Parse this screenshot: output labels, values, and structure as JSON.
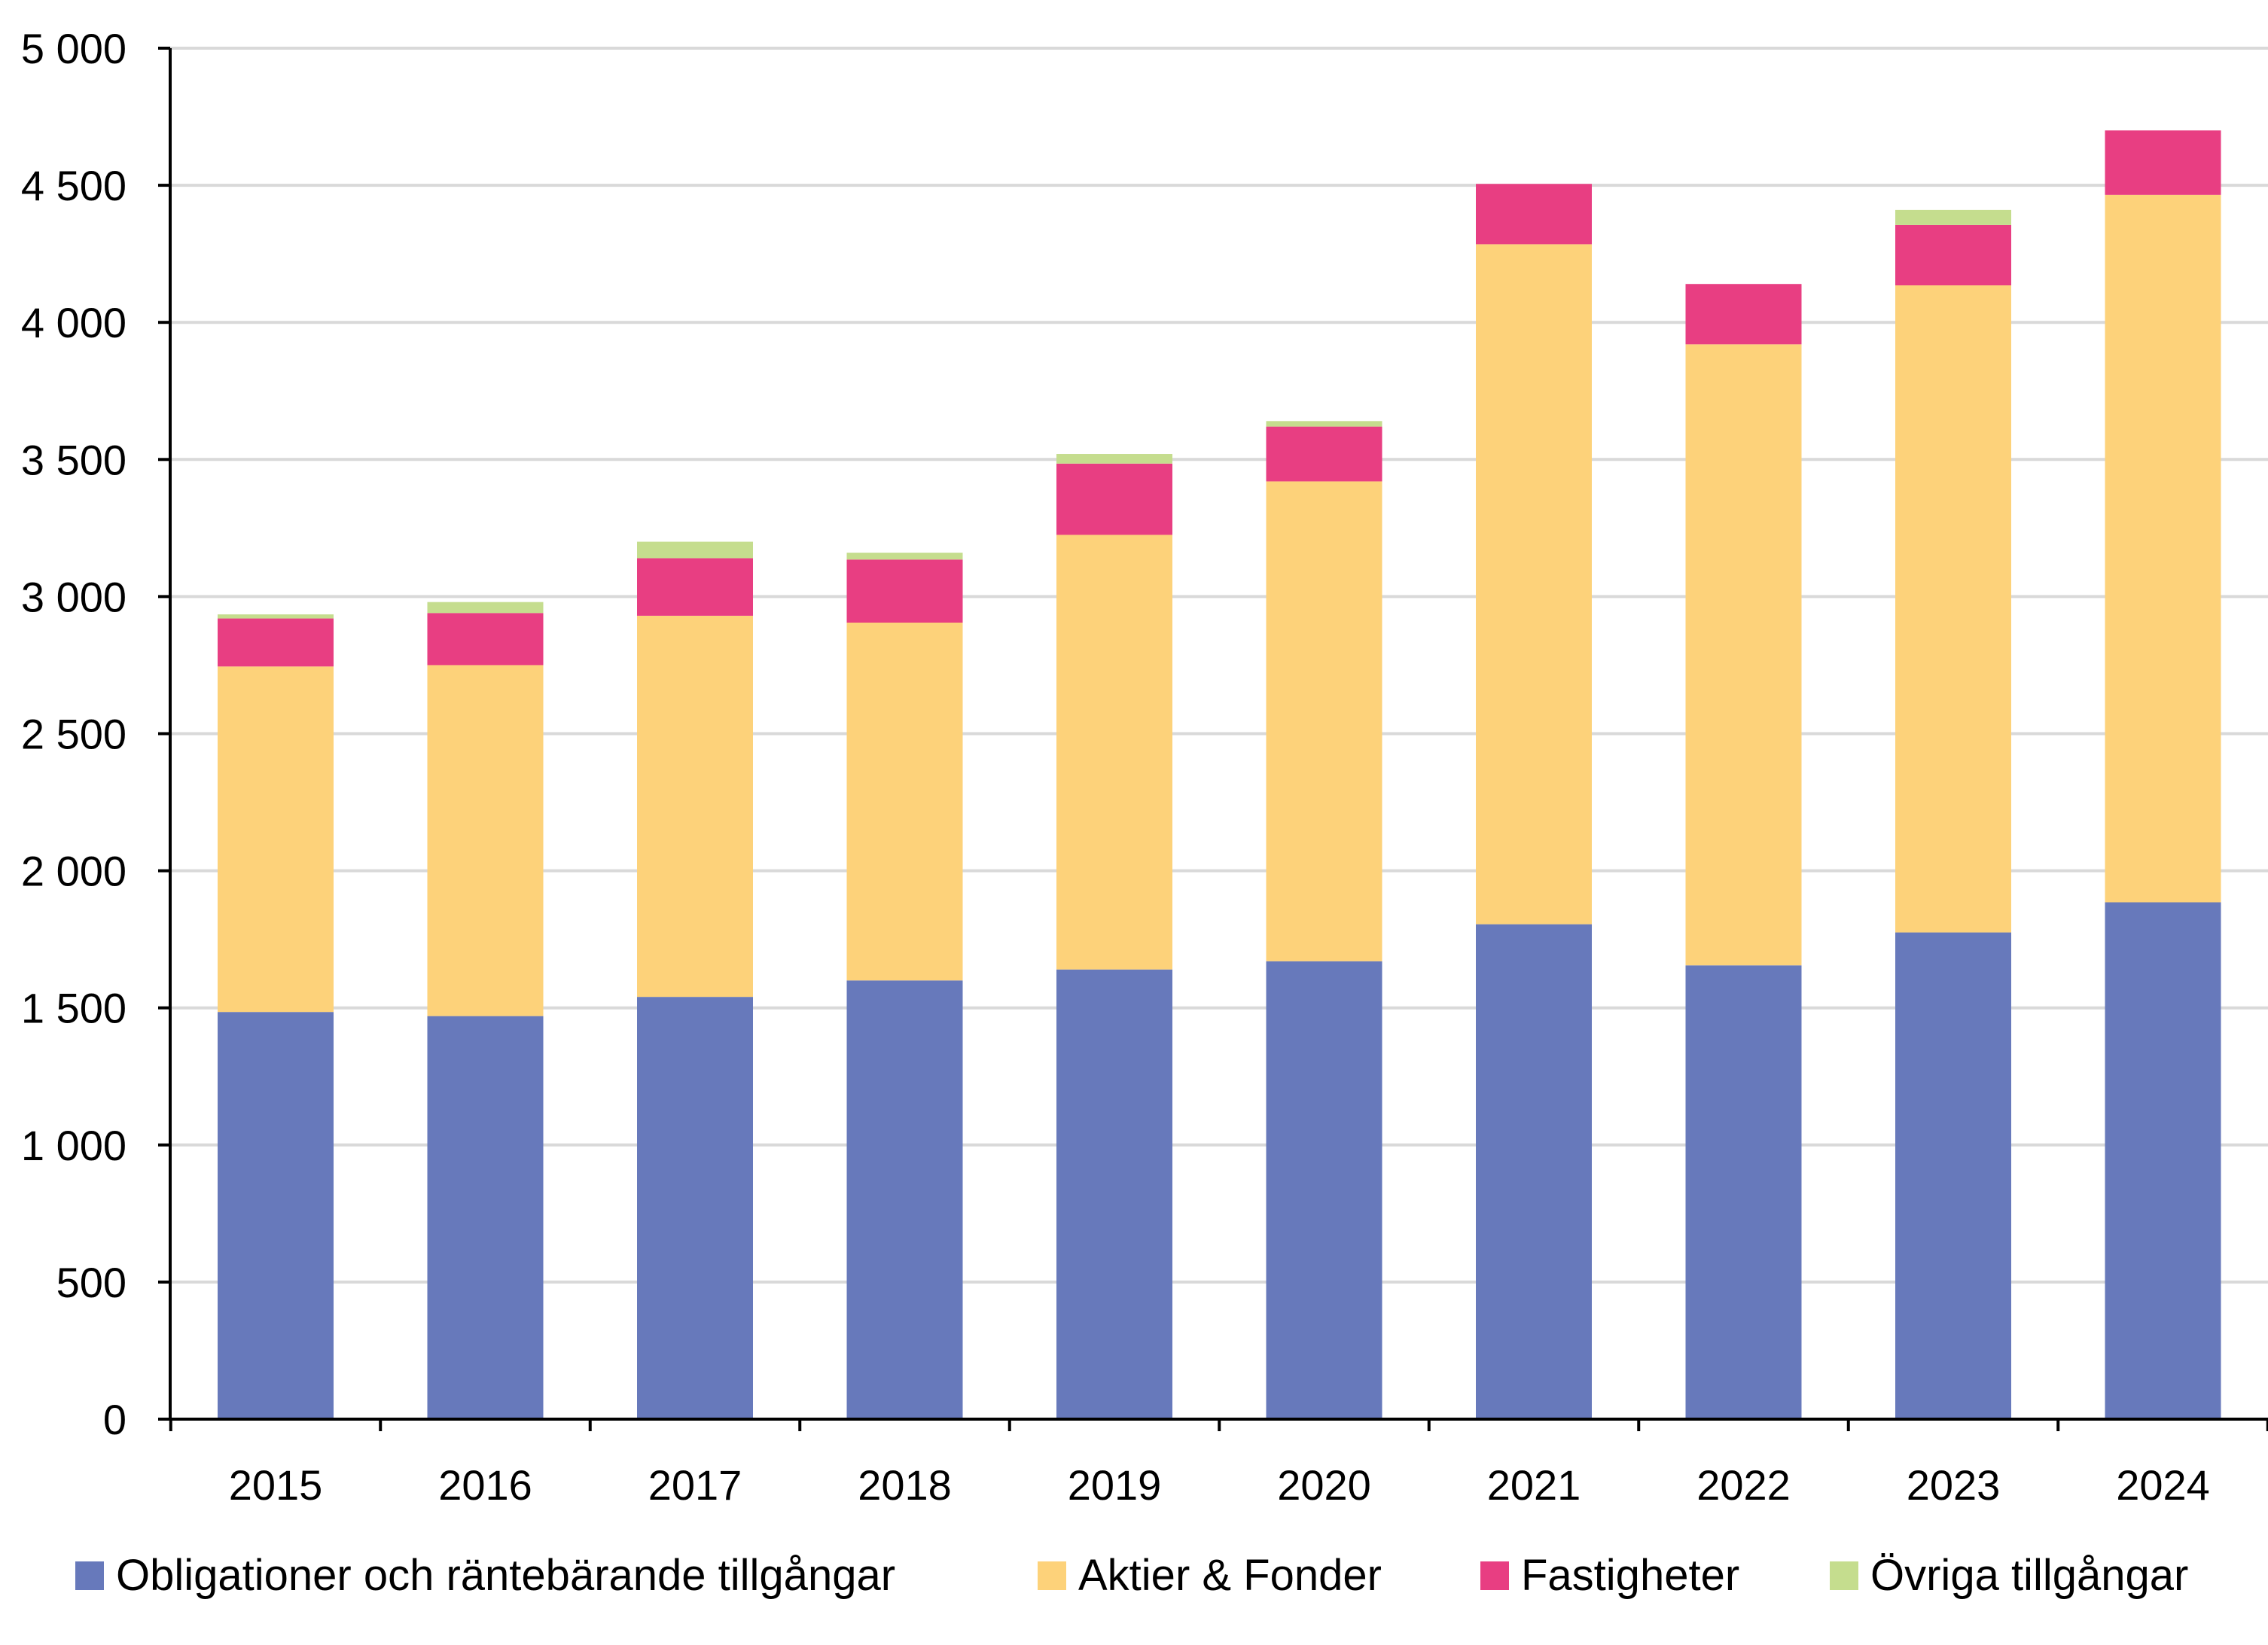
{
  "chart_data": {
    "type": "bar",
    "stacked": true,
    "title": "",
    "xlabel": "",
    "ylabel": "",
    "ylim": [
      0,
      5000
    ],
    "yticks": [
      0,
      500,
      1000,
      1500,
      2000,
      2500,
      3000,
      3500,
      4000,
      4500,
      5000
    ],
    "ytick_labels": [
      "0",
      "500",
      "1 000",
      "1 500",
      "2 000",
      "2 500",
      "3 000",
      "3 500",
      "4 000",
      "4 500",
      "5 000"
    ],
    "grid": true,
    "legend_position": "bottom",
    "categories": [
      "2015",
      "2016",
      "2017",
      "2018",
      "2019",
      "2020",
      "2021",
      "2022",
      "2023",
      "2024"
    ],
    "series": [
      {
        "name": "Obligationer och räntebärande tillgångar",
        "color": "#6779BB",
        "values": [
          1485,
          1470,
          1540,
          1600,
          1640,
          1670,
          1805,
          1655,
          1775,
          1885
        ]
      },
      {
        "name": "Aktier & Fonder",
        "color": "#FDD27A",
        "values": [
          1260,
          1280,
          1390,
          1305,
          1585,
          1750,
          2480,
          2265,
          2360,
          2580
        ]
      },
      {
        "name": "Fastigheter",
        "color": "#E83E82",
        "values": [
          175,
          190,
          210,
          230,
          260,
          200,
          220,
          220,
          220,
          235
        ]
      },
      {
        "name": "Övriga tillgångar",
        "color": "#C5DD8E",
        "values": [
          15,
          40,
          60,
          25,
          35,
          20,
          0,
          0,
          55,
          0
        ]
      }
    ]
  }
}
